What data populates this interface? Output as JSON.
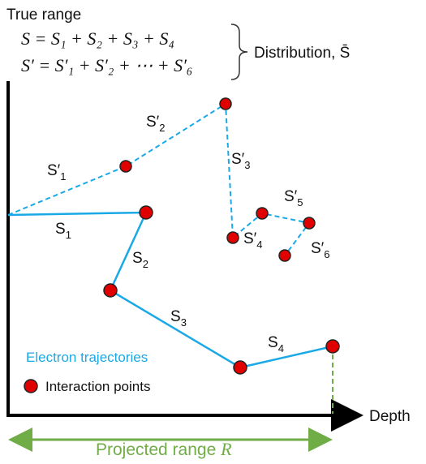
{
  "title": "True range",
  "equations": [
    "S = S₁ + S₂ + S₃ + S₄",
    "S′ = S′₁ + S′₂ + ⋯ + S′₆"
  ],
  "distribution_label": "Distribution, S̄",
  "dashed_labels": [
    {
      "base": "S′",
      "sub": "1"
    },
    {
      "base": "S′",
      "sub": "2"
    },
    {
      "base": "S′",
      "sub": "3"
    },
    {
      "base": "S′",
      "sub": "4"
    },
    {
      "base": "S′",
      "sub": "5"
    },
    {
      "base": "S′",
      "sub": "6"
    }
  ],
  "solid_labels": [
    {
      "base": "S",
      "sub": "1"
    },
    {
      "base": "S",
      "sub": "2"
    },
    {
      "base": "S",
      "sub": "3"
    },
    {
      "base": "S",
      "sub": "4"
    }
  ],
  "legend": {
    "trajectories": "Electron trajectories",
    "points": "Interaction points"
  },
  "x_axis_label": "Depth",
  "projected_range": {
    "text": "Projected range ",
    "symbol": "R"
  }
}
